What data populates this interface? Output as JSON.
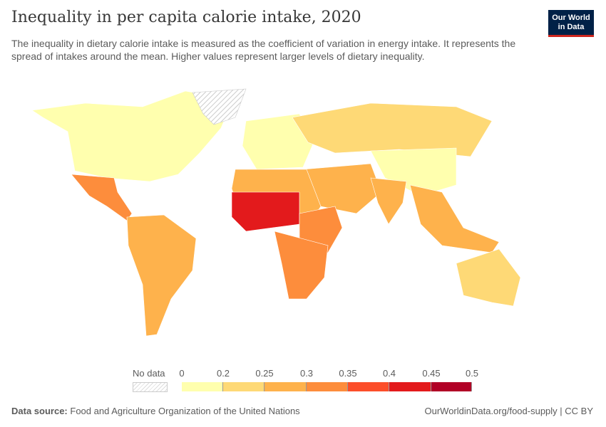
{
  "header": {
    "title": "Inequality in per capita calorie intake, 2020",
    "subtitle": "The inequality in dietary calorie intake is measured as the coefficient of variation in energy intake. It represents the spread of intakes around the mean. Higher values represent larger levels of dietary inequality.",
    "logo": "Our World in Data"
  },
  "legend": {
    "no_data": "No data",
    "ticks": [
      "0",
      "0.2",
      "0.25",
      "0.3",
      "0.35",
      "0.4",
      "0.45",
      "0.5"
    ],
    "colors": [
      "#ffffae",
      "#fed976",
      "#feb24c",
      "#fd8d3c",
      "#fc4e2a",
      "#e31a1c",
      "#b10026"
    ]
  },
  "map": {
    "no_data_color": "#e6e6e6",
    "regions": [
      {
        "name": "north-america",
        "color": "#ffffae"
      },
      {
        "name": "greenland",
        "color": "no-data"
      },
      {
        "name": "mexico-central-america",
        "color": "#fd8d3c"
      },
      {
        "name": "south-america",
        "color": "#feb24c"
      },
      {
        "name": "europe",
        "color": "#ffffae"
      },
      {
        "name": "russia",
        "color": "#fed976"
      },
      {
        "name": "china",
        "color": "#ffffae"
      },
      {
        "name": "middle-east",
        "color": "#feb24c"
      },
      {
        "name": "north-africa",
        "color": "#feb24c"
      },
      {
        "name": "west-africa",
        "color": "#e31a1c"
      },
      {
        "name": "east-africa",
        "color": "#fd8d3c"
      },
      {
        "name": "southern-africa",
        "color": "#fd8d3c"
      },
      {
        "name": "india",
        "color": "#feb24c"
      },
      {
        "name": "southeast-asia",
        "color": "#feb24c"
      },
      {
        "name": "australia",
        "color": "#fed976"
      }
    ]
  },
  "footer": {
    "source_label": "Data source:",
    "source": "Food and Agriculture Organization of the United Nations",
    "link": "OurWorldinData.org/food-supply | CC BY"
  }
}
